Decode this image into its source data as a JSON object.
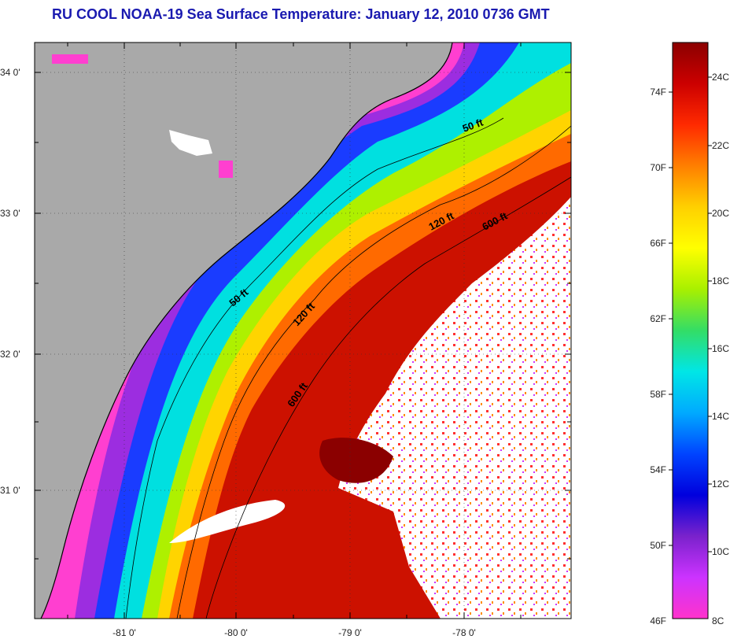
{
  "title": "RU COOL  NOAA-19  Sea Surface Temperature:  January 12, 2010 0736 GMT",
  "map": {
    "lat_labels": [
      "34 0'",
      "33 0'",
      "32 0'",
      "31 0'"
    ],
    "lon_labels": [
      "-81 0'",
      "-80 0'",
      "-79 0'",
      "-78 0'"
    ],
    "contour_labels": [
      "50 ft",
      "120 ft",
      "600 ft",
      "50 ft",
      "120 ft",
      "600 ft"
    ],
    "colors": {
      "land": "#a9a9a9",
      "cloud": "#ffffff",
      "coast": "#000000"
    }
  },
  "colorbar": {
    "fahrenheit_labels": [
      "74F",
      "70F",
      "66F",
      "62F",
      "58F",
      "54F",
      "50F",
      "46F"
    ],
    "celsius_labels": [
      "24C",
      "22C",
      "20C",
      "18C",
      "16C",
      "14C",
      "12C",
      "10C",
      "8C"
    ],
    "gradient_stops": [
      "#8b0000",
      "#cc0000",
      "#ff2a00",
      "#ff7f00",
      "#ffd000",
      "#ffff00",
      "#a8f000",
      "#33dd66",
      "#00e6e6",
      "#00aaff",
      "#0044ff",
      "#0000dd",
      "#7a22cc",
      "#cc33ff",
      "#ff33cc"
    ]
  }
}
